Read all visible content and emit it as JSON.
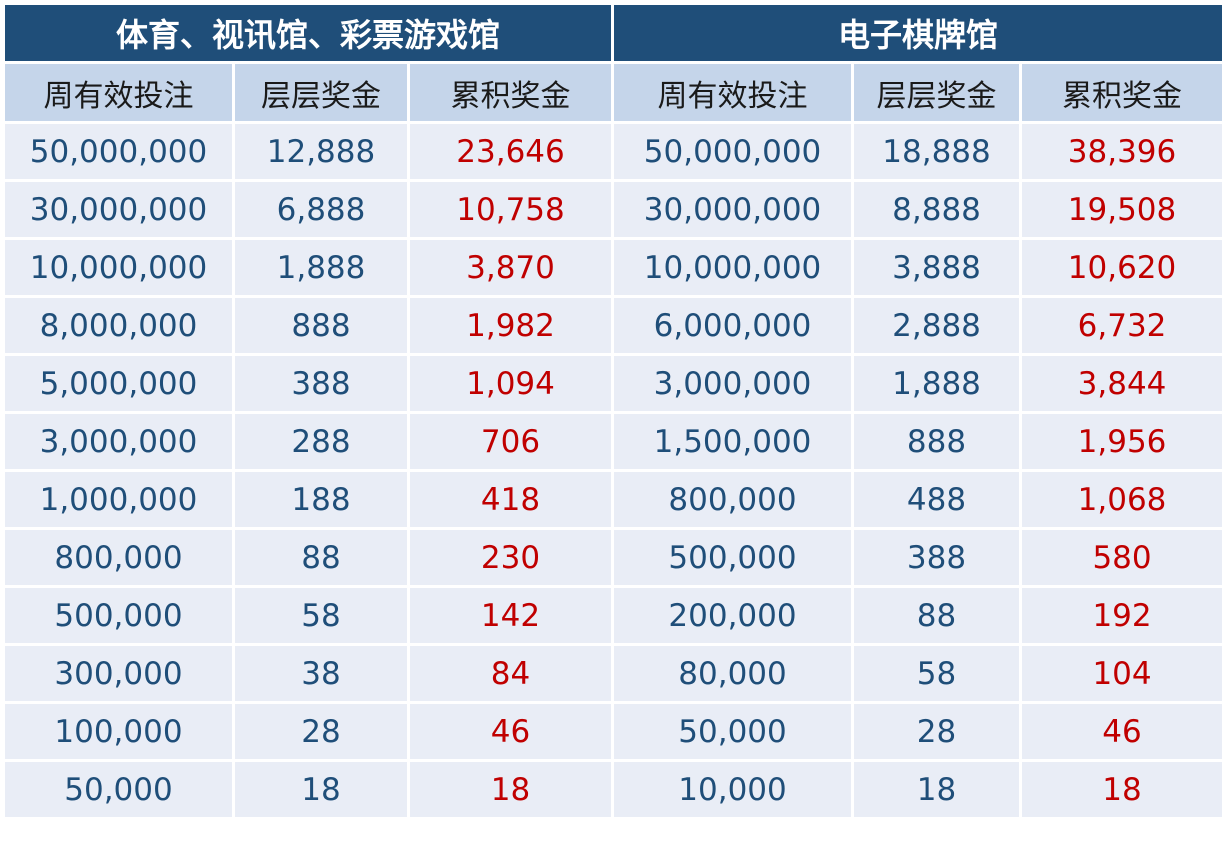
{
  "sections": [
    {
      "title": "体育、视讯馆、彩票游戏馆"
    },
    {
      "title": "电子棋牌馆"
    }
  ],
  "columns": {
    "bet": "周有效投注",
    "tier": "层层奖金",
    "cum": "累积奖金"
  },
  "colors": {
    "header_bg": "#1f4e79",
    "subheader_bg": "#c5d5ea",
    "row_bg": "#e9edf6",
    "value_blue": "#1f4e79",
    "value_red": "#c00000"
  },
  "rows": [
    {
      "a_bet": "50,000,000",
      "a_tier": "12,888",
      "a_cum": "23,646",
      "b_bet": "50,000,000",
      "b_tier": "18,888",
      "b_cum": "38,396"
    },
    {
      "a_bet": "30,000,000",
      "a_tier": "6,888",
      "a_cum": "10,758",
      "b_bet": "30,000,000",
      "b_tier": "8,888",
      "b_cum": "19,508"
    },
    {
      "a_bet": "10,000,000",
      "a_tier": "1,888",
      "a_cum": "3,870",
      "b_bet": "10,000,000",
      "b_tier": "3,888",
      "b_cum": "10,620"
    },
    {
      "a_bet": "8,000,000",
      "a_tier": "888",
      "a_cum": "1,982",
      "b_bet": "6,000,000",
      "b_tier": "2,888",
      "b_cum": "6,732"
    },
    {
      "a_bet": "5,000,000",
      "a_tier": "388",
      "a_cum": "1,094",
      "b_bet": "3,000,000",
      "b_tier": "1,888",
      "b_cum": "3,844"
    },
    {
      "a_bet": "3,000,000",
      "a_tier": "288",
      "a_cum": "706",
      "b_bet": "1,500,000",
      "b_tier": "888",
      "b_cum": "1,956"
    },
    {
      "a_bet": "1,000,000",
      "a_tier": "188",
      "a_cum": "418",
      "b_bet": "800,000",
      "b_tier": "488",
      "b_cum": "1,068"
    },
    {
      "a_bet": "800,000",
      "a_tier": "88",
      "a_cum": "230",
      "b_bet": "500,000",
      "b_tier": "388",
      "b_cum": "580"
    },
    {
      "a_bet": "500,000",
      "a_tier": "58",
      "a_cum": "142",
      "b_bet": "200,000",
      "b_tier": "88",
      "b_cum": "192"
    },
    {
      "a_bet": "300,000",
      "a_tier": "38",
      "a_cum": "84",
      "b_bet": "80,000",
      "b_tier": "58",
      "b_cum": "104"
    },
    {
      "a_bet": "100,000",
      "a_tier": "28",
      "a_cum": "46",
      "b_bet": "50,000",
      "b_tier": "28",
      "b_cum": "46"
    },
    {
      "a_bet": "50,000",
      "a_tier": "18",
      "a_cum": "18",
      "b_bet": "10,000",
      "b_tier": "18",
      "b_cum": "18"
    }
  ]
}
